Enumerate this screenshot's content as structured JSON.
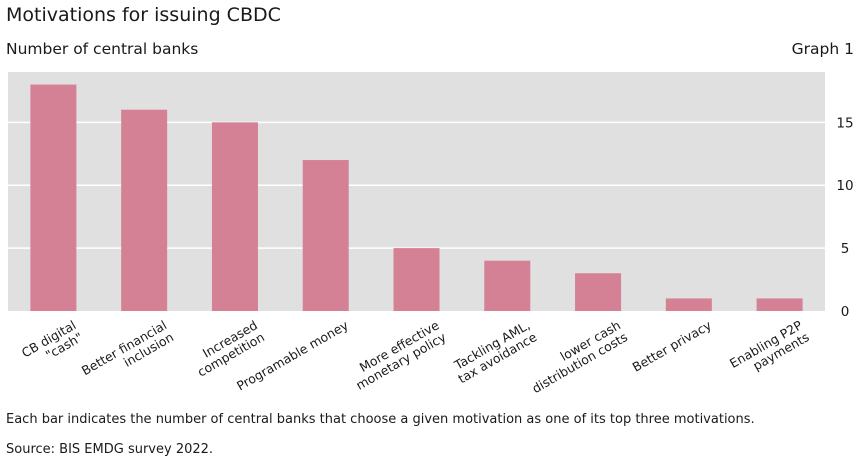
{
  "title": "Motivations for issuing CBDC",
  "subtitle": "Number of central banks",
  "graph_number": "Graph 1",
  "note": "Each bar indicates the number of central banks that choose a given motivation as one of its top three motivations.",
  "source": "Source: BIS EMDG survey 2022.",
  "colors": {
    "bar": "#d48195",
    "plot_bg": "#e0e0e0",
    "grid": "#ffffff"
  },
  "chart_data": {
    "type": "bar",
    "categories": [
      [
        "CB digital",
        "\"cash\""
      ],
      [
        "Better financial",
        "inclusion"
      ],
      [
        "Increased",
        "competition"
      ],
      [
        "Programable money"
      ],
      [
        "More effective",
        "monetary policy"
      ],
      [
        "Tackling AML,",
        "tax avoidance"
      ],
      [
        "lower cash",
        "distribution costs"
      ],
      [
        "Better privacy"
      ],
      [
        "Enabling P2P",
        "payments"
      ]
    ],
    "values": [
      18,
      16,
      15,
      12,
      5,
      4,
      3,
      1,
      1
    ],
    "ylim": [
      0,
      19
    ],
    "yticks": [
      0,
      5,
      10,
      15
    ],
    "ytick_labels": [
      "0",
      "5",
      "10",
      "15"
    ],
    "grid": true,
    "y_axis_side": "right",
    "xlabel": "",
    "ylabel": ""
  }
}
